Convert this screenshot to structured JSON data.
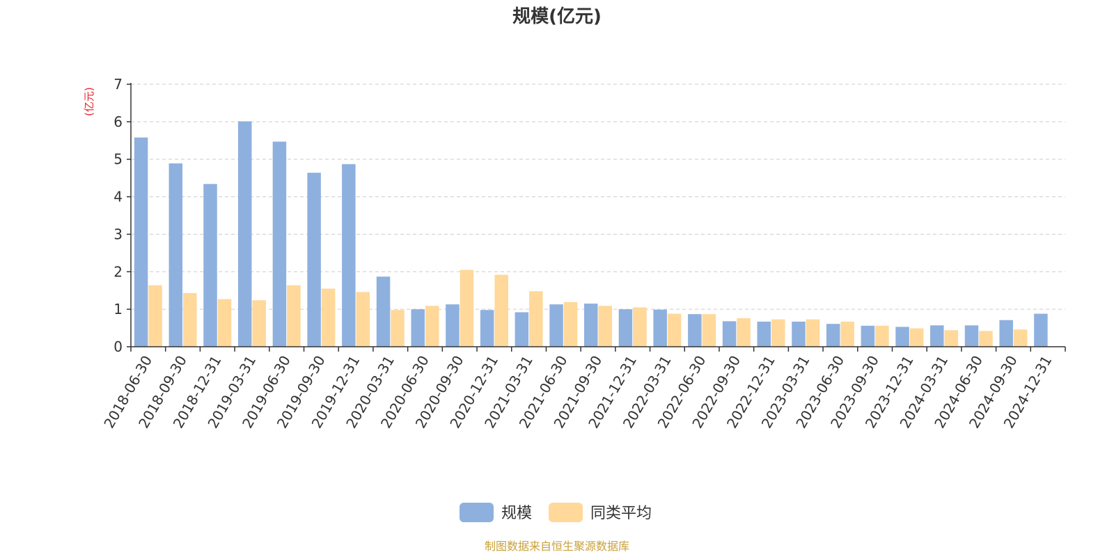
{
  "chart_data": {
    "type": "bar",
    "title": "规模(亿元)",
    "ylabel": "(亿元)",
    "ylim": [
      0,
      7
    ],
    "yticks": [
      0,
      1,
      2,
      3,
      4,
      5,
      6,
      7
    ],
    "grid": true,
    "legend_position": "bottom-center",
    "categories": [
      "2018-06-30",
      "2018-09-30",
      "2018-12-31",
      "2019-03-31",
      "2019-06-30",
      "2019-09-30",
      "2019-12-31",
      "2020-03-31",
      "2020-06-30",
      "2020-09-30",
      "2020-12-31",
      "2021-03-31",
      "2021-06-30",
      "2021-09-30",
      "2021-12-31",
      "2022-03-31",
      "2022-06-30",
      "2022-09-30",
      "2022-12-31",
      "2023-03-31",
      "2023-06-30",
      "2023-09-30",
      "2023-12-31",
      "2024-03-31",
      "2024-06-30",
      "2024-09-30",
      "2024-12-31"
    ],
    "series": [
      {
        "name": "规模",
        "color": "#8eb0de",
        "values": [
          5.58,
          4.89,
          4.34,
          6.01,
          5.47,
          4.64,
          4.87,
          1.87,
          1.0,
          1.13,
          0.98,
          0.92,
          1.13,
          1.15,
          1.0,
          0.99,
          0.87,
          0.68,
          0.67,
          0.67,
          0.61,
          0.56,
          0.53,
          0.57,
          0.57,
          0.71,
          0.88
        ]
      },
      {
        "name": "同类平均",
        "color": "#ffd89a",
        "values": [
          1.64,
          1.43,
          1.27,
          1.24,
          1.64,
          1.55,
          1.46,
          0.98,
          1.09,
          2.05,
          1.92,
          1.48,
          1.19,
          1.09,
          1.05,
          0.88,
          0.87,
          0.76,
          0.73,
          0.73,
          0.67,
          0.56,
          0.49,
          0.44,
          0.42,
          0.46,
          null
        ]
      }
    ]
  },
  "colors": {
    "unit_label": "#e8232a",
    "source": "#c9a13c",
    "axis": "#333333",
    "grid": "#cccccc"
  },
  "footer": {
    "source": "制图数据来自恒生聚源数据库"
  }
}
